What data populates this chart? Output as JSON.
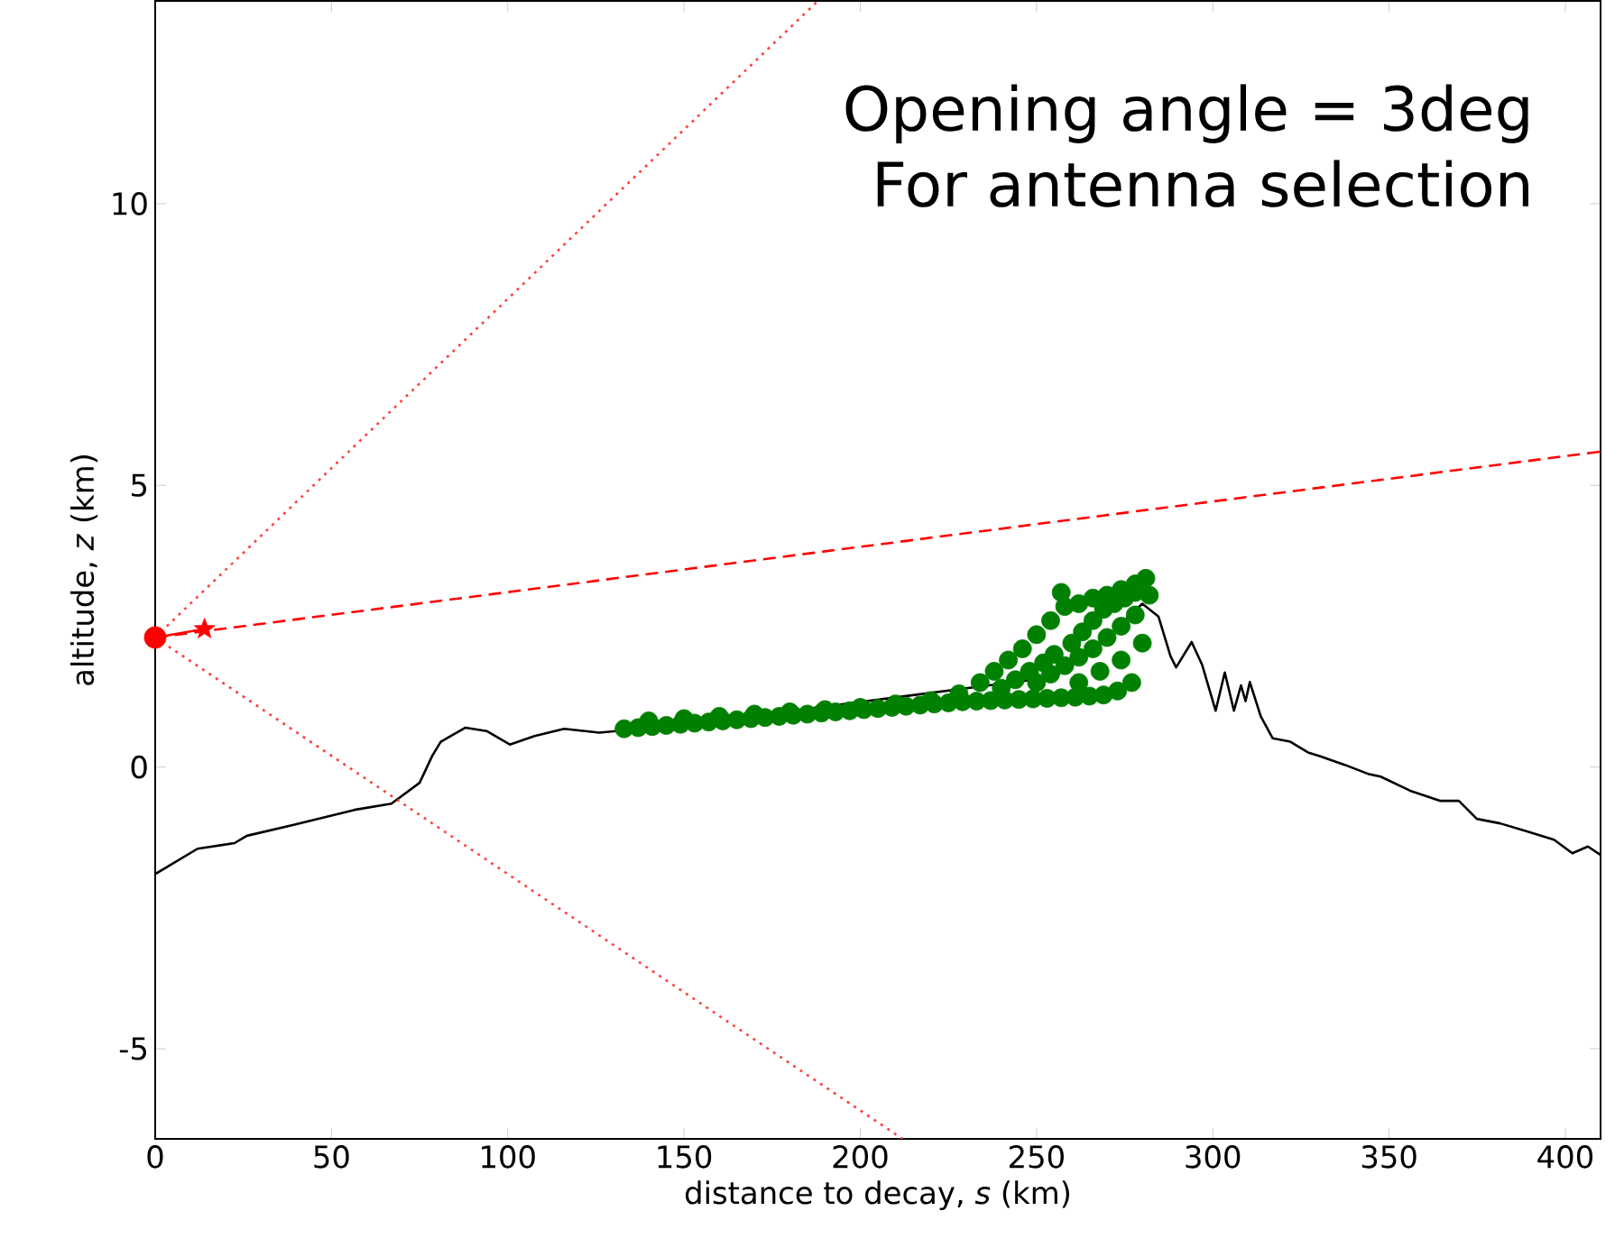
{
  "chart_data": {
    "type": "line",
    "xlabel": "distance to decay, *s* (km)",
    "ylabel": "altitude, *z* (km)",
    "annotations": [
      "Opening angle = 3deg",
      "For antenna selection"
    ],
    "xlim": [
      0,
      410
    ],
    "ylim": [
      -6.6,
      13.6
    ],
    "xticks": [
      0,
      50,
      100,
      150,
      200,
      250,
      300,
      350,
      400
    ],
    "yticks": [
      -5,
      0,
      5,
      10
    ],
    "series": [
      {
        "color": "#000000",
        "line_style": "solid",
        "marker": "none",
        "x": [
          0,
          12,
          22.5,
          26,
          39,
          56.5,
          67,
          75,
          78.6,
          81,
          88,
          94,
          100.6,
          107.6,
          116,
          126,
          133,
          150,
          200,
          230,
          255,
          270,
          280,
          284.6,
          288,
          289.6,
          294,
          297,
          300.8,
          303.4,
          306,
          308,
          309.3,
          310.5,
          313.6,
          317,
          322,
          327,
          330.5,
          337.4,
          344,
          347.6,
          356,
          364.6,
          369.8,
          374.9,
          381.5,
          388.5,
          396.8,
          402,
          406.4,
          410
        ],
        "values": [
          -1.9,
          -1.45,
          -1.35,
          -1.22,
          -1.03,
          -0.76,
          -0.65,
          -0.28,
          0.2,
          0.45,
          0.7,
          0.64,
          0.4,
          0.55,
          0.68,
          0.61,
          null,
          0.75,
          null,
          null,
          1.6,
          2.3,
          2.9,
          2.67,
          1.97,
          1.77,
          2.22,
          1.81,
          1.0,
          1.68,
          1.0,
          1.45,
          1.17,
          1.51,
          0.9,
          0.51,
          0.45,
          0.26,
          0.19,
          0.04,
          -0.12,
          -0.17,
          -0.42,
          -0.6,
          -0.6,
          -0.92,
          -1.0,
          -1.13,
          -1.29,
          -1.53,
          -1.41,
          -1.56
        ]
      },
      {
        "type": "scatter",
        "color": "#008000",
        "marker": "circle",
        "x": [
          133,
          137,
          141,
          145,
          149,
          153,
          157,
          161,
          165,
          169,
          173,
          177,
          181,
          185,
          189,
          193,
          197,
          201,
          205,
          209,
          213,
          217,
          221,
          225,
          229,
          233,
          237,
          241,
          245,
          249,
          253,
          257,
          261,
          265,
          269,
          273,
          277,
          140,
          150,
          160,
          170,
          180,
          190,
          200,
          210,
          220,
          228,
          234,
          238,
          242,
          246,
          250,
          254,
          258,
          262,
          266,
          270,
          274,
          278,
          281,
          240,
          244,
          248,
          252,
          255,
          257,
          260,
          263,
          266,
          269,
          272,
          275,
          278,
          282,
          250,
          254,
          258,
          262,
          266,
          270,
          274,
          278,
          262,
          268,
          274,
          280
        ],
        "values": [
          0.68,
          0.7,
          0.72,
          0.74,
          0.76,
          0.78,
          0.8,
          0.82,
          0.84,
          0.86,
          0.88,
          0.9,
          0.92,
          0.94,
          0.96,
          0.98,
          1.0,
          1.02,
          1.04,
          1.06,
          1.08,
          1.1,
          1.12,
          1.14,
          1.16,
          1.17,
          1.18,
          1.19,
          1.2,
          1.21,
          1.22,
          1.23,
          1.24,
          1.26,
          1.28,
          1.35,
          1.5,
          0.82,
          0.86,
          0.9,
          0.94,
          0.98,
          1.02,
          1.06,
          1.12,
          1.18,
          1.3,
          1.5,
          1.7,
          1.9,
          2.1,
          2.35,
          2.6,
          2.85,
          2.9,
          3.0,
          3.05,
          3.15,
          3.25,
          3.35,
          1.4,
          1.55,
          1.7,
          1.85,
          2.0,
          3.1,
          2.2,
          2.4,
          2.6,
          2.8,
          2.9,
          3.0,
          3.1,
          3.05,
          1.5,
          1.65,
          1.8,
          1.95,
          2.1,
          2.3,
          2.5,
          2.7,
          1.5,
          1.7,
          1.9,
          2.2
        ]
      },
      {
        "color": "#ff0000",
        "line_style": "dashed",
        "marker": "none",
        "x": [
          0,
          410
        ],
        "values": [
          2.3,
          5.6
        ]
      },
      {
        "color": "#ff4040",
        "line_style": "dotted",
        "marker": "none",
        "x": [
          0,
          188
        ],
        "values": [
          2.3,
          13.6
        ]
      },
      {
        "color": "#ff4040",
        "line_style": "dotted",
        "marker": "none",
        "x": [
          0,
          212
        ],
        "values": [
          2.3,
          -6.6
        ]
      },
      {
        "color": "#ff0000",
        "line_style": "solid",
        "marker": "none",
        "x": [
          0,
          14
        ],
        "values": [
          2.3,
          2.45
        ]
      },
      {
        "type": "scatter",
        "color": "#ff0000",
        "marker": "circle",
        "x": [
          0
        ],
        "values": [
          2.3
        ]
      },
      {
        "type": "scatter",
        "color": "#ff0000",
        "marker": "star",
        "x": [
          14
        ],
        "values": [
          2.45
        ]
      }
    ]
  }
}
